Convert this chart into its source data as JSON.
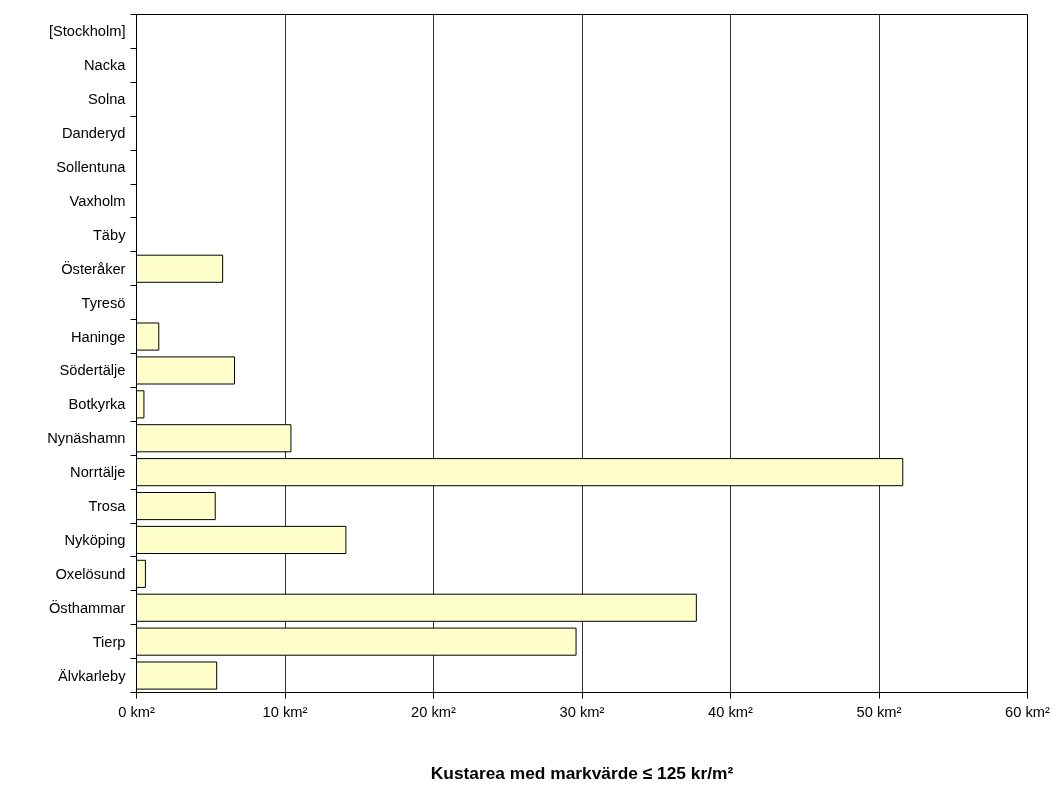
{
  "chart_data": {
    "type": "bar",
    "orientation": "horizontal",
    "xlabel": "Kustarea med markvärde ≤ 125 kr/m²",
    "categories": [
      "[Stockholm]",
      "Nacka",
      "Solna",
      "Danderyd",
      "Sollentuna",
      "Vaxholm",
      "Täby",
      "Österåker",
      "Tyresö",
      "Haninge",
      "Södertälje",
      "Botkyrka",
      "Nynäshamn",
      "Norrtälje",
      "Trosa",
      "Nyköping",
      "Oxelösund",
      "Östhammar",
      "Tierp",
      "Älvkarleby"
    ],
    "values": [
      null,
      null,
      null,
      null,
      null,
      null,
      null,
      5.8,
      null,
      1.5,
      6.6,
      0.5,
      10.4,
      51.6,
      5.3,
      14.1,
      0.6,
      37.7,
      29.6,
      5.4
    ],
    "color": "#ffffcc",
    "xlim": [
      0,
      60
    ],
    "xticks": [
      {
        "value": 0,
        "label": "0 km²"
      },
      {
        "value": 10,
        "label": "10 km²"
      },
      {
        "value": 20,
        "label": "20 km²"
      },
      {
        "value": 30,
        "label": "30 km²"
      },
      {
        "value": 40,
        "label": "40 km²"
      },
      {
        "value": 50,
        "label": "50 km²"
      },
      {
        "value": 60,
        "label": "60 km²"
      }
    ],
    "grid": "x"
  }
}
